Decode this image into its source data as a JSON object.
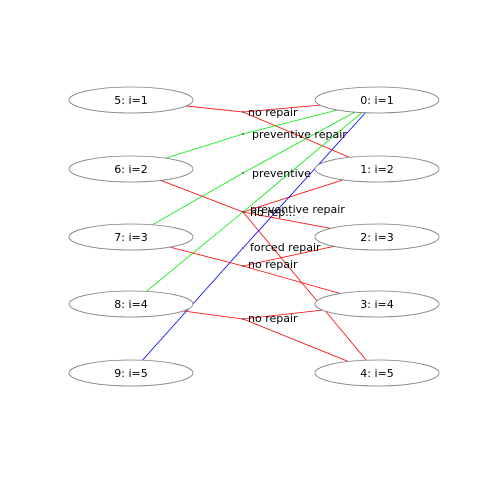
{
  "colors": {
    "red": "#ff0000",
    "green": "#00ee00",
    "blue": "#0000ff",
    "node_stroke": "#808080"
  },
  "nodes": [
    {
      "id": "n0",
      "label": "0: i=1"
    },
    {
      "id": "n1",
      "label": "1: i=2"
    },
    {
      "id": "n2",
      "label": "2: i=3"
    },
    {
      "id": "n3",
      "label": "3: i=4"
    },
    {
      "id": "n4",
      "label": "4: i=5"
    },
    {
      "id": "n5",
      "label": "5: i=1"
    },
    {
      "id": "n6",
      "label": "6: i=2"
    },
    {
      "id": "n7",
      "label": "7: i=3"
    },
    {
      "id": "n8",
      "label": "8: i=4"
    },
    {
      "id": "n9",
      "label": "9: i=5"
    }
  ],
  "edge_labels": [
    {
      "id": "l0",
      "text": "no repair"
    },
    {
      "id": "l1",
      "text": "preventive repair"
    },
    {
      "id": "l2",
      "text": "preventive"
    },
    {
      "id": "l3",
      "text": "no rep..."
    },
    {
      "id": "l4",
      "text": "preventive repair"
    },
    {
      "id": "l5",
      "text": "forced repair"
    },
    {
      "id": "l6",
      "text": "no repair"
    },
    {
      "id": "l7",
      "text": "no repair"
    }
  ]
}
